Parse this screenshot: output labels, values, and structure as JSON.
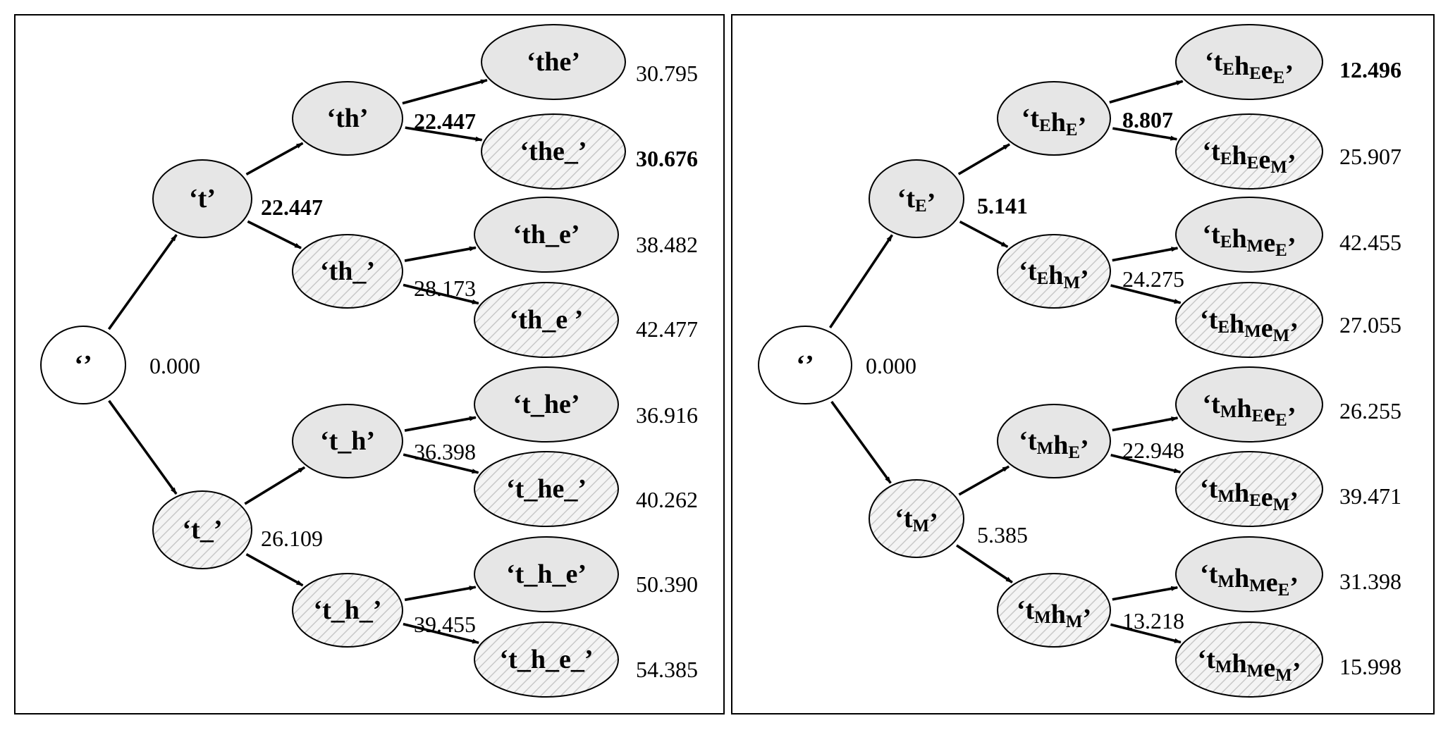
{
  "colors": {
    "node_gray": "#e6e6e6",
    "node_white": "#ffffff",
    "hatch_background": "#f4f4f4",
    "hatch_line": "#c8c8c8",
    "stroke": "#000000"
  },
  "panels": [
    {
      "id": "left",
      "root": {
        "label": "‘’",
        "score": "0.000"
      },
      "nodes": [
        {
          "id": "L1a",
          "runs": [
            {
              "t": "‘t’"
            }
          ],
          "style": "gray",
          "score": "22.447",
          "bold": true
        },
        {
          "id": "L1b",
          "runs": [
            {
              "t": "‘t_’"
            }
          ],
          "style": "hatched",
          "score": "26.109",
          "bold": false
        },
        {
          "id": "L2a",
          "runs": [
            {
              "t": "‘th’"
            }
          ],
          "style": "gray",
          "score": "22.447",
          "bold": true
        },
        {
          "id": "L2b",
          "runs": [
            {
              "t": "‘th_’"
            }
          ],
          "style": "hatched",
          "score": "28.173",
          "bold": false
        },
        {
          "id": "L2c",
          "runs": [
            {
              "t": "‘t_h’"
            }
          ],
          "style": "gray",
          "score": "36.398",
          "bold": false
        },
        {
          "id": "L2d",
          "runs": [
            {
              "t": "‘t_h_’"
            }
          ],
          "style": "hatched",
          "score": "39.455",
          "bold": false
        },
        {
          "id": "L3a",
          "runs": [
            {
              "t": "‘the’"
            }
          ],
          "style": "gray",
          "score": "30.795",
          "bold": false
        },
        {
          "id": "L3b",
          "runs": [
            {
              "t": "‘the_’"
            }
          ],
          "style": "hatched",
          "score": "30.676",
          "bold": true
        },
        {
          "id": "L3c",
          "runs": [
            {
              "t": "‘th_e’"
            }
          ],
          "style": "gray",
          "score": "38.482",
          "bold": false
        },
        {
          "id": "L3d",
          "runs": [
            {
              "t": "‘th_e ’"
            }
          ],
          "style": "hatched",
          "score": "42.477",
          "bold": false
        },
        {
          "id": "L3e",
          "runs": [
            {
              "t": "‘t_he’"
            }
          ],
          "style": "gray",
          "score": "36.916",
          "bold": false
        },
        {
          "id": "L3f",
          "runs": [
            {
              "t": "‘t_he_’"
            }
          ],
          "style": "hatched",
          "score": "40.262",
          "bold": false
        },
        {
          "id": "L3g",
          "runs": [
            {
              "t": "‘t_h_e’"
            }
          ],
          "style": "gray",
          "score": "50.390",
          "bold": false
        },
        {
          "id": "L3h",
          "runs": [
            {
              "t": "‘t_h_e_’"
            }
          ],
          "style": "hatched",
          "score": "54.385",
          "bold": false
        }
      ]
    },
    {
      "id": "right",
      "root": {
        "label": "‘’",
        "score": "0.000"
      },
      "nodes": [
        {
          "id": "R1a",
          "runs": [
            {
              "t": "‘t"
            },
            {
              "t": "E",
              "sub": true
            },
            {
              "t": "’"
            }
          ],
          "style": "gray",
          "score": "5.141",
          "bold": true
        },
        {
          "id": "R1b",
          "runs": [
            {
              "t": "‘t"
            },
            {
              "t": "M",
              "sub": true
            },
            {
              "t": "’"
            }
          ],
          "style": "hatched",
          "score": "5.385",
          "bold": false
        },
        {
          "id": "R2a",
          "runs": [
            {
              "t": "‘t"
            },
            {
              "t": "E",
              "sub": true
            },
            {
              "t": "h"
            },
            {
              "t": "E",
              "sub": true
            },
            {
              "t": "’"
            }
          ],
          "style": "gray",
          "score": "8.807",
          "bold": true
        },
        {
          "id": "R2b",
          "runs": [
            {
              "t": "‘t"
            },
            {
              "t": "E",
              "sub": true
            },
            {
              "t": "h"
            },
            {
              "t": "M",
              "sub": true
            },
            {
              "t": "’"
            }
          ],
          "style": "hatched",
          "score": "24.275",
          "bold": false
        },
        {
          "id": "R2c",
          "runs": [
            {
              "t": "‘t"
            },
            {
              "t": "M",
              "sub": true
            },
            {
              "t": "h"
            },
            {
              "t": "E",
              "sub": true
            },
            {
              "t": "’"
            }
          ],
          "style": "gray",
          "score": "22.948",
          "bold": false
        },
        {
          "id": "R2d",
          "runs": [
            {
              "t": "‘t"
            },
            {
              "t": "M",
              "sub": true
            },
            {
              "t": "h"
            },
            {
              "t": "M",
              "sub": true
            },
            {
              "t": "’"
            }
          ],
          "style": "hatched",
          "score": "13.218",
          "bold": false
        },
        {
          "id": "R3a",
          "runs": [
            {
              "t": "‘t"
            },
            {
              "t": "E",
              "sub": true
            },
            {
              "t": "h"
            },
            {
              "t": "E",
              "sub": true
            },
            {
              "t": "e"
            },
            {
              "t": "E",
              "sub": true
            },
            {
              "t": "’"
            }
          ],
          "style": "gray",
          "score": "12.496",
          "bold": true
        },
        {
          "id": "R3b",
          "runs": [
            {
              "t": "‘t"
            },
            {
              "t": "E",
              "sub": true
            },
            {
              "t": "h"
            },
            {
              "t": "E",
              "sub": true
            },
            {
              "t": "e"
            },
            {
              "t": "M",
              "sub": true
            },
            {
              "t": "’"
            }
          ],
          "style": "hatched",
          "score": "25.907",
          "bold": false
        },
        {
          "id": "R3c",
          "runs": [
            {
              "t": "‘t"
            },
            {
              "t": "E",
              "sub": true
            },
            {
              "t": "h"
            },
            {
              "t": "M",
              "sub": true
            },
            {
              "t": "e"
            },
            {
              "t": "E",
              "sub": true
            },
            {
              "t": "’"
            }
          ],
          "style": "gray",
          "score": "42.455",
          "bold": false
        },
        {
          "id": "R3d",
          "runs": [
            {
              "t": "‘t"
            },
            {
              "t": "E",
              "sub": true
            },
            {
              "t": "h"
            },
            {
              "t": "M",
              "sub": true
            },
            {
              "t": "e"
            },
            {
              "t": "M",
              "sub": true
            },
            {
              "t": "’"
            }
          ],
          "style": "hatched",
          "score": "27.055",
          "bold": false
        },
        {
          "id": "R3e",
          "runs": [
            {
              "t": "‘t"
            },
            {
              "t": "M",
              "sub": true
            },
            {
              "t": "h"
            },
            {
              "t": "E",
              "sub": true
            },
            {
              "t": "e"
            },
            {
              "t": "E",
              "sub": true
            },
            {
              "t": "’"
            }
          ],
          "style": "gray",
          "score": "26.255",
          "bold": false
        },
        {
          "id": "R3f",
          "runs": [
            {
              "t": "‘t"
            },
            {
              "t": "M",
              "sub": true
            },
            {
              "t": "h"
            },
            {
              "t": "E",
              "sub": true
            },
            {
              "t": "e"
            },
            {
              "t": "M",
              "sub": true
            },
            {
              "t": "’"
            }
          ],
          "style": "hatched",
          "score": "39.471",
          "bold": false
        },
        {
          "id": "R3g",
          "runs": [
            {
              "t": "‘t"
            },
            {
              "t": "M",
              "sub": true
            },
            {
              "t": "h"
            },
            {
              "t": "M",
              "sub": true
            },
            {
              "t": "e"
            },
            {
              "t": "E",
              "sub": true
            },
            {
              "t": "’"
            }
          ],
          "style": "gray",
          "score": "31.398",
          "bold": false
        },
        {
          "id": "R3h",
          "runs": [
            {
              "t": "‘t"
            },
            {
              "t": "M",
              "sub": true
            },
            {
              "t": "h"
            },
            {
              "t": "M",
              "sub": true
            },
            {
              "t": "e"
            },
            {
              "t": "M",
              "sub": true
            },
            {
              "t": "’"
            }
          ],
          "style": "hatched",
          "score": "15.998",
          "bold": false
        }
      ]
    }
  ]
}
